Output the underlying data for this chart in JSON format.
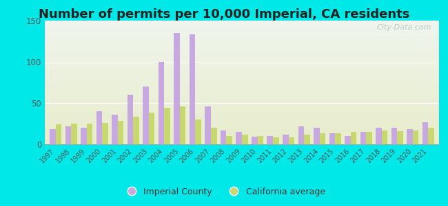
{
  "title": "Number of permits per 10,000 Imperial, CA residents",
  "years": [
    1997,
    1998,
    1999,
    2000,
    2001,
    2002,
    2003,
    2004,
    2005,
    2006,
    2007,
    2008,
    2009,
    2010,
    2011,
    2012,
    2013,
    2014,
    2015,
    2016,
    2017,
    2018,
    2019,
    2020,
    2021
  ],
  "imperial": [
    18,
    22,
    20,
    40,
    36,
    60,
    70,
    100,
    135,
    133,
    46,
    17,
    15,
    9,
    10,
    12,
    22,
    20,
    13,
    10,
    15,
    20,
    20,
    18,
    27
  ],
  "california": [
    24,
    25,
    25,
    26,
    28,
    33,
    38,
    44,
    46,
    30,
    20,
    10,
    12,
    10,
    8,
    8,
    12,
    13,
    13,
    15,
    15,
    17,
    16,
    17,
    20
  ],
  "imperial_color": "#c8a8e0",
  "california_color": "#c8d870",
  "background_outer": "#00e8e8",
  "background_grad_top": "#f0f5ee",
  "background_grad_bottom": "#e8edcc",
  "ylim": [
    0,
    150
  ],
  "yticks": [
    0,
    50,
    100,
    150
  ],
  "bar_width": 0.38,
  "title_fontsize": 13,
  "watermark": "City-Data.com"
}
